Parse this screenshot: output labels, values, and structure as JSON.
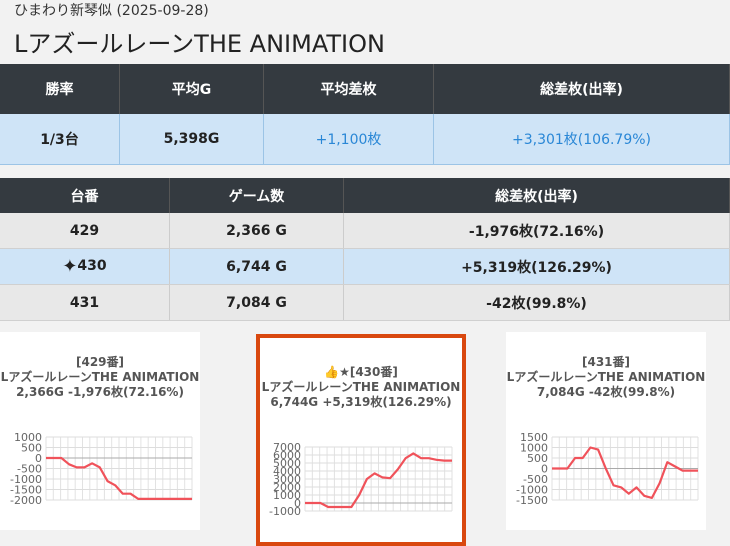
{
  "page": {
    "subtitle": "ひまわり新琴似 (2025-09-28)",
    "title": "LアズールレーンTHE ANIMATION"
  },
  "summary": {
    "headers": [
      "勝率",
      "平均G",
      "平均差枚",
      "総差枚(出率)"
    ],
    "values": [
      "1/3台",
      "5,398G",
      "+1,100枚",
      "+3,301枚(106.79%)"
    ]
  },
  "machines": {
    "headers": [
      "台番",
      "ゲーム数",
      "総差枚(出率)"
    ],
    "rows": [
      {
        "number": "429",
        "games": "2,366 G",
        "diff": "-1,976枚(72.16%)"
      },
      {
        "number": "430",
        "games": "6,744 G",
        "diff": "+5,319枚(126.29%)",
        "icon": "sparkle-icon"
      },
      {
        "number": "431",
        "games": "7,084 G",
        "diff": "-42枚(99.8%)"
      }
    ]
  },
  "cards": [
    {
      "line1": "[429番]",
      "line2": "LアズールレーンTHE ANIMATION",
      "line3": "2,366G -1,976枚(72.16%)"
    },
    {
      "line1": "👍★[430番]",
      "line2": "LアズールレーンTHE ANIMATION",
      "line3": "6,744G +5,319枚(126.29%)",
      "highlight_color": "#d9480f"
    },
    {
      "line1": "[431番]",
      "line2": "LアズールレーンTHE ANIMATION",
      "line3": "7,084G -42枚(99.8%)"
    }
  ],
  "chart_data": [
    {
      "type": "line",
      "title": "[429番]",
      "ylim": [
        -2000,
        1000
      ],
      "yticks": [
        1000,
        500,
        0,
        -500,
        -1000,
        -1500,
        -2000
      ],
      "y": [
        0,
        0,
        0,
        -300,
        -450,
        -450,
        -250,
        -450,
        -1100,
        -1300,
        -1700,
        -1700,
        -1950,
        -1950,
        -1950,
        -1950,
        -1950,
        -1950,
        -1950,
        -1950
      ]
    },
    {
      "type": "line",
      "title": "👍★[430番]",
      "ylim": [
        -1000,
        7000
      ],
      "yticks": [
        7000,
        6000,
        5000,
        4000,
        3000,
        2000,
        1000,
        0,
        -1000
      ],
      "y": [
        0,
        0,
        0,
        -500,
        -500,
        -500,
        -500,
        1000,
        3000,
        3700,
        3200,
        3100,
        4200,
        5600,
        6200,
        5600,
        5600,
        5400,
        5300,
        5300
      ]
    },
    {
      "type": "line",
      "title": "[431番]",
      "ylim": [
        -1500,
        1500
      ],
      "yticks": [
        1500,
        1000,
        500,
        0,
        -500,
        -1000,
        -1500
      ],
      "y": [
        0,
        0,
        0,
        500,
        500,
        1000,
        900,
        0,
        -800,
        -900,
        -1200,
        -900,
        -1300,
        -1400,
        -700,
        300,
        100,
        -100,
        -100,
        -100
      ]
    }
  ]
}
